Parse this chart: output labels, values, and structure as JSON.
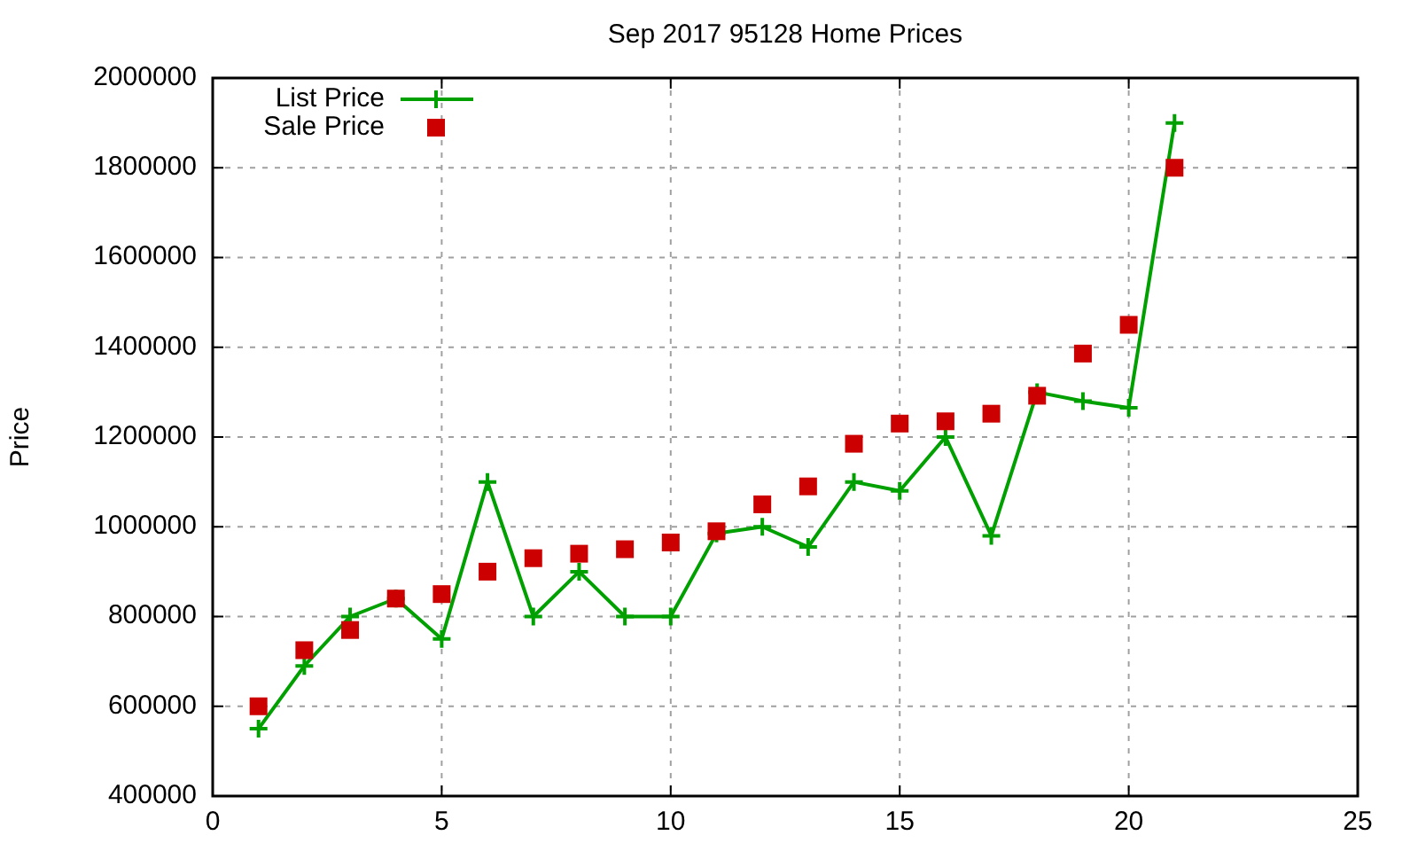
{
  "chart_data": {
    "type": "line",
    "title": "Sep 2017 95128 Home Prices",
    "ylabel": "Price",
    "x": [
      1,
      2,
      3,
      4,
      5,
      6,
      7,
      8,
      9,
      10,
      11,
      12,
      13,
      14,
      15,
      16,
      17,
      18,
      19,
      20,
      21
    ],
    "series": [
      {
        "name": "List Price",
        "color": "#00a000",
        "marker": "cross",
        "line_style": "solid",
        "values": [
          550000,
          690000,
          800000,
          840000,
          750000,
          1100000,
          800000,
          900000,
          800000,
          800000,
          985000,
          1000000,
          955000,
          1100000,
          1080000,
          1200000,
          980000,
          1300000,
          1280000,
          1265000,
          1900000
        ]
      },
      {
        "name": "Sale Price",
        "type": "scatter",
        "color": "#cc0000",
        "marker": "square",
        "values": [
          600000,
          725000,
          770000,
          840000,
          850000,
          900000,
          930000,
          940000,
          950000,
          965000,
          990000,
          1050000,
          1090000,
          1185000,
          1230000,
          1235000,
          1252000,
          1292000,
          1386000,
          1450000,
          1800000
        ]
      }
    ],
    "xlim": [
      0,
      25
    ],
    "xticks": [
      0,
      5,
      10,
      15,
      20,
      25
    ],
    "ylim": [
      400000,
      2000000
    ],
    "yticks": [
      400000,
      600000,
      800000,
      1000000,
      1200000,
      1400000,
      1600000,
      1800000,
      2000000
    ],
    "grid": true,
    "legend": "top left"
  }
}
